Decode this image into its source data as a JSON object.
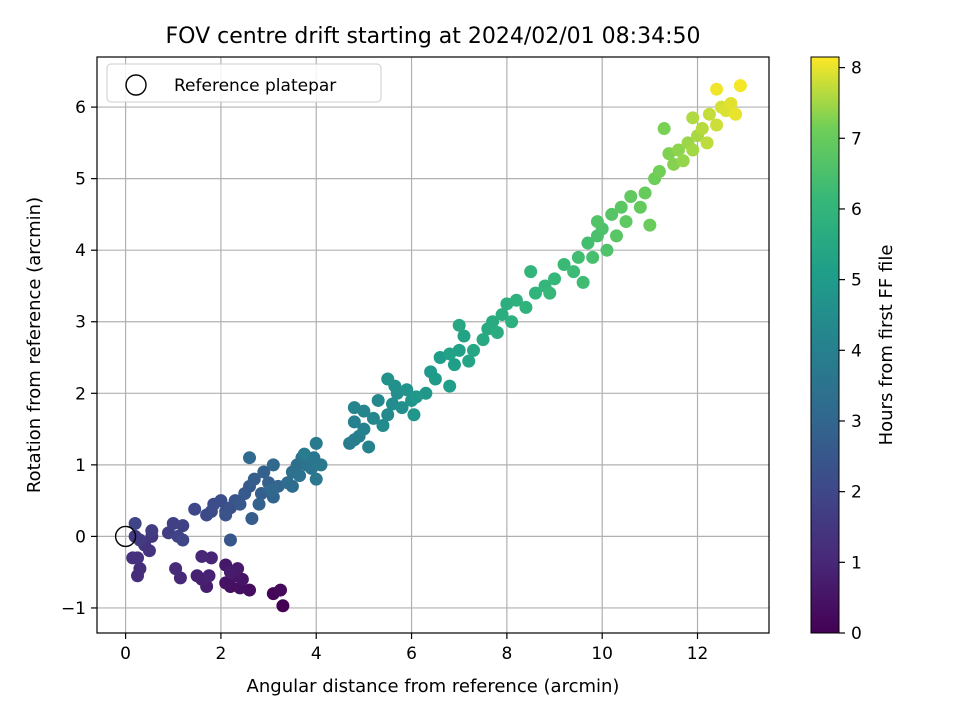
{
  "chart_data": {
    "type": "scatter",
    "title": "FOV centre drift starting at 2024/02/01 08:34:50",
    "xlabel": "Angular distance from reference (arcmin)",
    "ylabel": "Rotation from reference (arcmin)",
    "xlim": [
      -0.6,
      13.5
    ],
    "ylim": [
      -1.35,
      6.7
    ],
    "xticks": [
      0,
      2,
      4,
      6,
      8,
      10,
      12
    ],
    "yticks": [
      -1,
      0,
      1,
      2,
      3,
      4,
      5,
      6
    ],
    "xtick_labels": [
      "0",
      "2",
      "4",
      "6",
      "8",
      "10",
      "12"
    ],
    "ytick_labels": [
      "−1",
      "0",
      "1",
      "2",
      "3",
      "4",
      "5",
      "6"
    ],
    "grid": true,
    "legend": {
      "placement": "top-left",
      "entries": [
        {
          "label": "Reference platepar",
          "marker": "open-circle",
          "x": 0,
          "y": 0
        }
      ]
    },
    "colorbar": {
      "label": "Hours from first FF file",
      "range": [
        0,
        8.15
      ],
      "ticks": [
        0,
        1,
        2,
        3,
        4,
        5,
        6,
        7,
        8
      ],
      "tick_labels": [
        "0",
        "1",
        "2",
        "3",
        "4",
        "5",
        "6",
        "7",
        "8"
      ],
      "colormap": "viridis"
    },
    "points": [
      [
        3.3,
        -0.97,
        0.0
      ],
      [
        3.1,
        -0.8,
        0.1
      ],
      [
        3.25,
        -0.75,
        0.2
      ],
      [
        2.6,
        -0.75,
        0.3
      ],
      [
        2.4,
        -0.72,
        0.35
      ],
      [
        2.2,
        -0.7,
        0.4
      ],
      [
        2.1,
        -0.65,
        0.45
      ],
      [
        2.45,
        -0.6,
        0.5
      ],
      [
        2.3,
        -0.55,
        0.55
      ],
      [
        2.1,
        -0.4,
        0.6
      ],
      [
        2.35,
        -0.45,
        0.65
      ],
      [
        2.2,
        -0.5,
        0.7
      ],
      [
        1.7,
        -0.7,
        0.75
      ],
      [
        1.6,
        -0.6,
        0.8
      ],
      [
        1.5,
        -0.55,
        0.85
      ],
      [
        1.75,
        -0.55,
        0.9
      ],
      [
        1.8,
        -0.3,
        0.95
      ],
      [
        1.6,
        -0.28,
        1.0
      ],
      [
        1.15,
        -0.58,
        1.05
      ],
      [
        1.05,
        -0.45,
        1.1
      ],
      [
        0.3,
        -0.45,
        1.15
      ],
      [
        0.25,
        -0.55,
        1.2
      ],
      [
        0.15,
        -0.3,
        1.25
      ],
      [
        0.25,
        -0.3,
        1.3
      ],
      [
        0.5,
        -0.2,
        1.35
      ],
      [
        0.4,
        -0.12,
        1.4
      ],
      [
        0.55,
        0.0,
        1.5
      ],
      [
        0.2,
        0.0,
        1.55
      ],
      [
        0.3,
        -0.05,
        1.6
      ],
      [
        0.55,
        0.08,
        1.65
      ],
      [
        0.9,
        0.05,
        1.7
      ],
      [
        1.0,
        0.18,
        1.75
      ],
      [
        1.2,
        0.15,
        1.8
      ],
      [
        1.1,
        0.0,
        1.85
      ],
      [
        0.2,
        0.18,
        1.9
      ],
      [
        1.2,
        -0.05,
        1.95
      ],
      [
        1.45,
        0.38,
        2.0
      ],
      [
        1.7,
        0.3,
        2.05
      ],
      [
        1.8,
        0.35,
        2.1
      ],
      [
        1.85,
        0.45,
        2.15
      ],
      [
        2.0,
        0.5,
        2.2
      ],
      [
        2.1,
        0.35,
        2.25
      ],
      [
        2.2,
        0.4,
        2.3
      ],
      [
        2.1,
        0.3,
        2.35
      ],
      [
        2.3,
        0.5,
        2.4
      ],
      [
        2.2,
        -0.05,
        2.45
      ],
      [
        2.4,
        0.45,
        2.5
      ],
      [
        2.5,
        0.6,
        2.55
      ],
      [
        2.6,
        0.7,
        2.6
      ],
      [
        2.65,
        0.25,
        2.65
      ],
      [
        2.7,
        0.8,
        2.7
      ],
      [
        2.85,
        0.6,
        2.75
      ],
      [
        2.9,
        0.9,
        2.8
      ],
      [
        3.0,
        0.75,
        2.85
      ],
      [
        2.8,
        0.45,
        2.9
      ],
      [
        3.1,
        0.55,
        2.95
      ],
      [
        3.2,
        0.7,
        3.0
      ],
      [
        3.05,
        0.65,
        3.05
      ],
      [
        3.1,
        1.0,
        3.1
      ],
      [
        2.6,
        1.1,
        3.15
      ],
      [
        3.4,
        0.75,
        3.2
      ],
      [
        3.5,
        0.7,
        3.25
      ],
      [
        3.5,
        0.9,
        3.3
      ],
      [
        3.6,
        1.0,
        3.35
      ],
      [
        3.7,
        1.1,
        3.4
      ],
      [
        3.65,
        0.85,
        3.45
      ],
      [
        3.8,
        1.0,
        3.5
      ],
      [
        3.9,
        0.95,
        3.55
      ],
      [
        3.95,
        1.1,
        3.6
      ],
      [
        4.0,
        0.8,
        3.65
      ],
      [
        4.1,
        1.0,
        3.7
      ],
      [
        4.0,
        1.3,
        3.75
      ],
      [
        3.75,
        1.15,
        3.8
      ],
      [
        4.7,
        1.3,
        3.85
      ],
      [
        4.8,
        1.35,
        3.9
      ],
      [
        4.9,
        1.4,
        3.95
      ],
      [
        4.8,
        1.6,
        4.0
      ],
      [
        5.0,
        1.5,
        4.05
      ],
      [
        5.1,
        1.25,
        4.1
      ],
      [
        4.8,
        1.8,
        4.15
      ],
      [
        5.0,
        1.75,
        4.2
      ],
      [
        5.2,
        1.65,
        4.25
      ],
      [
        5.3,
        1.9,
        4.3
      ],
      [
        5.5,
        1.7,
        4.35
      ],
      [
        5.4,
        1.55,
        4.4
      ],
      [
        5.6,
        1.85,
        4.45
      ],
      [
        5.7,
        2.0,
        4.5
      ],
      [
        5.8,
        1.8,
        4.55
      ],
      [
        5.65,
        2.1,
        4.6
      ],
      [
        5.5,
        2.2,
        4.65
      ],
      [
        5.9,
        2.05,
        4.7
      ],
      [
        6.0,
        1.9,
        4.75
      ],
      [
        6.05,
        1.7,
        4.8
      ],
      [
        6.3,
        2.0,
        4.85
      ],
      [
        6.1,
        1.95,
        4.9
      ],
      [
        6.4,
        2.3,
        4.95
      ],
      [
        6.5,
        2.2,
        5.0
      ],
      [
        6.6,
        2.5,
        5.05
      ],
      [
        6.8,
        2.1,
        5.1
      ],
      [
        6.9,
        2.4,
        5.15
      ],
      [
        7.0,
        2.6,
        5.2
      ],
      [
        6.8,
        2.55,
        5.25
      ],
      [
        7.1,
        2.8,
        5.3
      ],
      [
        7.2,
        2.45,
        5.35
      ],
      [
        7.3,
        2.6,
        5.4
      ],
      [
        7.0,
        2.95,
        5.45
      ],
      [
        7.5,
        2.75,
        5.5
      ],
      [
        7.6,
        2.9,
        5.55
      ],
      [
        7.7,
        3.0,
        5.6
      ],
      [
        7.8,
        2.85,
        5.65
      ],
      [
        7.9,
        3.1,
        5.7
      ],
      [
        8.0,
        3.25,
        5.75
      ],
      [
        8.1,
        3.0,
        5.8
      ],
      [
        8.2,
        3.3,
        5.85
      ],
      [
        8.4,
        3.2,
        5.9
      ],
      [
        8.6,
        3.4,
        5.95
      ],
      [
        8.5,
        3.7,
        6.0
      ],
      [
        8.8,
        3.5,
        6.05
      ],
      [
        9.0,
        3.6,
        6.1
      ],
      [
        8.9,
        3.4,
        6.15
      ],
      [
        9.2,
        3.8,
        6.2
      ],
      [
        9.4,
        3.7,
        6.25
      ],
      [
        9.6,
        3.55,
        6.3
      ],
      [
        9.5,
        3.9,
        6.35
      ],
      [
        9.7,
        4.1,
        6.4
      ],
      [
        9.8,
        3.9,
        6.45
      ],
      [
        9.9,
        4.2,
        6.5
      ],
      [
        10.0,
        4.3,
        6.55
      ],
      [
        10.1,
        4.0,
        6.6
      ],
      [
        9.9,
        4.4,
        6.65
      ],
      [
        10.2,
        4.5,
        6.7
      ],
      [
        10.3,
        4.2,
        6.75
      ],
      [
        10.4,
        4.6,
        6.8
      ],
      [
        10.5,
        4.4,
        6.85
      ],
      [
        10.6,
        4.75,
        6.9
      ],
      [
        10.8,
        4.6,
        6.95
      ],
      [
        10.9,
        4.8,
        7.0
      ],
      [
        11.0,
        4.35,
        7.05
      ],
      [
        11.1,
        5.0,
        7.1
      ],
      [
        11.2,
        5.1,
        7.15
      ],
      [
        11.3,
        5.7,
        7.2
      ],
      [
        11.4,
        5.35,
        7.25
      ],
      [
        11.5,
        5.2,
        7.3
      ],
      [
        11.6,
        5.4,
        7.35
      ],
      [
        11.7,
        5.25,
        7.4
      ],
      [
        11.8,
        5.5,
        7.45
      ],
      [
        11.9,
        5.4,
        7.5
      ],
      [
        12.0,
        5.6,
        7.55
      ],
      [
        11.9,
        5.85,
        7.6
      ],
      [
        12.1,
        5.7,
        7.65
      ],
      [
        12.2,
        5.5,
        7.7
      ],
      [
        12.25,
        5.9,
        7.75
      ],
      [
        12.4,
        5.75,
        7.8
      ],
      [
        12.5,
        6.0,
        7.85
      ],
      [
        12.6,
        5.95,
        7.9
      ],
      [
        12.7,
        6.05,
        7.95
      ],
      [
        12.8,
        5.9,
        8.0
      ],
      [
        12.4,
        6.25,
        8.05
      ],
      [
        12.9,
        6.3,
        8.1
      ]
    ]
  }
}
